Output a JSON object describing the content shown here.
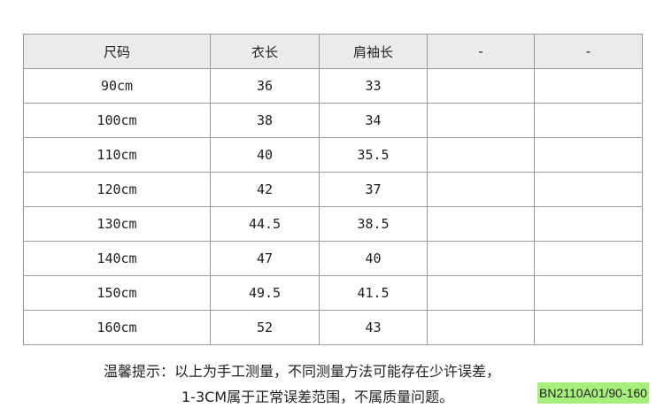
{
  "table": {
    "headers": [
      "尺码",
      "衣长",
      "肩袖长",
      "-",
      "-"
    ],
    "rows": [
      [
        "90cm",
        "36",
        "33",
        "",
        ""
      ],
      [
        "100cm",
        "38",
        "34",
        "",
        ""
      ],
      [
        "110cm",
        "40",
        "35.5",
        "",
        ""
      ],
      [
        "120cm",
        "42",
        "37",
        "",
        ""
      ],
      [
        "130cm",
        "44.5",
        "38.5",
        "",
        ""
      ],
      [
        "140cm",
        "47",
        "40",
        "",
        ""
      ],
      [
        "150cm",
        "49.5",
        "41.5",
        "",
        ""
      ],
      [
        "160cm",
        "52",
        "43",
        "",
        ""
      ]
    ]
  },
  "notes": {
    "line1": "温馨提示：以上为手工测量，不同测量方法可能存在少许误差，",
    "line2": "1-3CM属于正常误差范围，不属质量问题。"
  },
  "badge": {
    "text": "BN2110A01/90-160",
    "color": "#a6ef7c"
  }
}
